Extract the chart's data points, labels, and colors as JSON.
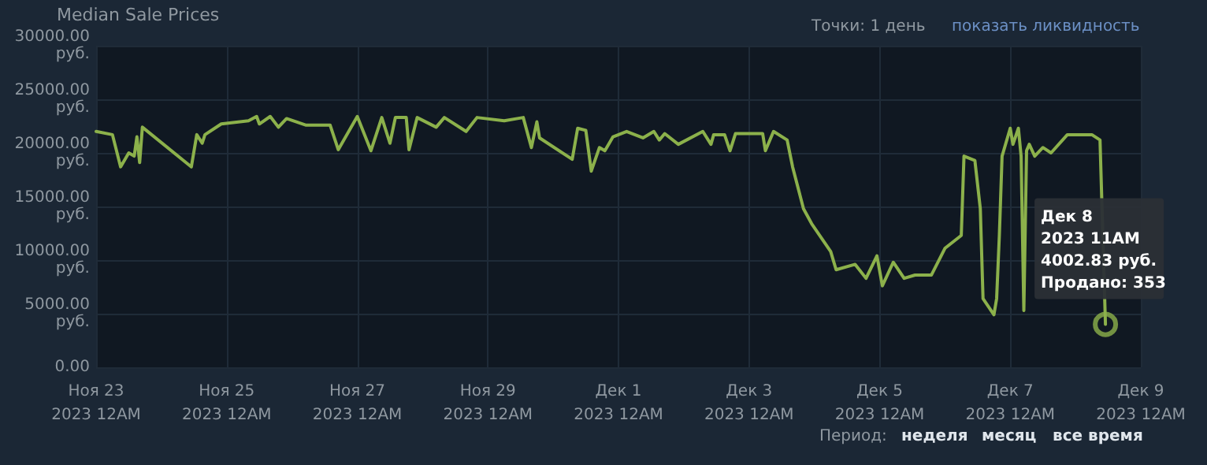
{
  "chart_data": {
    "type": "line",
    "title": "Median Sale Prices",
    "x": [
      "2023-11-23T00:00",
      "2023-11-23T06:00",
      "2023-11-23T09:00",
      "2023-11-23T12:00",
      "2023-11-23T14:00",
      "2023-11-23T15:00",
      "2023-11-23T16:00",
      "2023-11-23T17:00",
      "2023-11-24T11:00",
      "2023-11-24T13:00",
      "2023-11-24T15:00",
      "2023-11-24T16:00",
      "2023-11-24T22:00",
      "2023-11-25T08:00",
      "2023-11-25T11:00",
      "2023-11-25T12:00",
      "2023-11-25T16:00",
      "2023-11-25T19:00",
      "2023-11-25T22:00",
      "2023-11-26T05:00",
      "2023-11-26T14:00",
      "2023-11-26T17:00",
      "2023-11-27T00:00",
      "2023-11-27T05:00",
      "2023-11-27T09:00",
      "2023-11-27T12:00",
      "2023-11-27T14:00",
      "2023-11-27T18:00",
      "2023-11-27T19:00",
      "2023-11-27T22:00",
      "2023-11-28T05:00",
      "2023-11-28T08:00",
      "2023-11-28T16:00",
      "2023-11-28T20:00",
      "2023-11-29T06:00",
      "2023-11-29T13:00",
      "2023-11-29T16:00",
      "2023-11-29T18:00",
      "2023-11-29T19:00",
      "2023-11-30T07:00",
      "2023-11-30T09:00",
      "2023-11-30T12:00",
      "2023-11-30T14:00",
      "2023-11-30T17:00",
      "2023-11-30T19:00",
      "2023-11-30T22:00",
      "2023-12-01T03:00",
      "2023-12-01T09:00",
      "2023-12-01T13:00",
      "2023-12-01T15:00",
      "2023-12-01T17:00",
      "2023-12-01T22:00",
      "2023-12-02T07:00",
      "2023-12-02T10:00",
      "2023-12-02T11:00",
      "2023-12-02T15:00",
      "2023-12-02T17:00",
      "2023-12-02T19:00",
      "2023-12-03T05:00",
      "2023-12-03T06:00",
      "2023-12-03T09:00",
      "2023-12-03T14:00",
      "2023-12-03T16:00",
      "2023-12-03T20:00",
      "2023-12-03T23:00",
      "2023-12-04T06:00",
      "2023-12-04T08:00",
      "2023-12-04T15:00",
      "2023-12-04T19:00",
      "2023-12-04T23:00",
      "2023-12-05T01:00",
      "2023-12-05T05:00",
      "2023-12-05T09:00",
      "2023-12-05T13:00",
      "2023-12-05T19:00",
      "2023-12-06T00:00",
      "2023-12-06T06:00",
      "2023-12-06T07:00",
      "2023-12-06T11:00",
      "2023-12-06T13:00",
      "2023-12-06T14:00",
      "2023-12-06T18:00",
      "2023-12-06T19:00",
      "2023-12-06T20:00",
      "2023-12-06T21:00",
      "2023-12-07T00:00",
      "2023-12-07T01:00",
      "2023-12-07T03:00",
      "2023-12-07T04:00",
      "2023-12-07T05:00",
      "2023-12-07T06:00",
      "2023-12-07T07:00",
      "2023-12-07T09:00",
      "2023-12-07T12:00",
      "2023-12-07T15:00",
      "2023-12-07T21:00",
      "2023-12-08T06:00",
      "2023-12-08T09:00",
      "2023-12-08T11:00"
    ],
    "series": [
      {
        "color": "#8cb14b",
        "values": [
          22000,
          21700,
          18700,
          20000,
          19700,
          21500,
          19100,
          22400,
          18700,
          21700,
          20900,
          21700,
          22700,
          23000,
          23400,
          22700,
          23400,
          22400,
          23200,
          22600,
          22600,
          20300,
          23400,
          20200,
          23300,
          20900,
          23300,
          23300,
          20300,
          23300,
          22400,
          23300,
          22000,
          23300,
          23000,
          23300,
          20500,
          22900,
          21400,
          19400,
          22300,
          22100,
          18300,
          20500,
          20200,
          21500,
          22000,
          21400,
          22000,
          21200,
          21800,
          20800,
          22000,
          20800,
          21700,
          21700,
          20200,
          21800,
          21800,
          20200,
          22000,
          21200,
          18700,
          14800,
          13400,
          10800,
          9100,
          9600,
          8300,
          10400,
          7600,
          9800,
          8300,
          8600,
          8600,
          11100,
          12300,
          19700,
          19300,
          14800,
          6400,
          4900,
          6400,
          12300,
          19700,
          22300,
          20800,
          22300,
          19700,
          5300,
          20200,
          20800,
          19700,
          20500,
          20000,
          21700,
          21700,
          21200,
          4002.83
        ]
      }
    ],
    "xlim": [
      "2023-11-23T00:00",
      "2023-12-09T00:00"
    ],
    "xticks": [
      {
        "value": "2023-11-23T00:00",
        "label": "Ноя 23\n2023 12AM"
      },
      {
        "value": "2023-11-25T00:00",
        "label": "Ноя 25\n2023 12AM"
      },
      {
        "value": "2023-11-27T00:00",
        "label": "Ноя 27\n2023 12AM"
      },
      {
        "value": "2023-11-29T00:00",
        "label": "Ноя 29\n2023 12AM"
      },
      {
        "value": "2023-12-01T00:00",
        "label": "Дек 1\n2023 12AM"
      },
      {
        "value": "2023-12-03T00:00",
        "label": "Дек 3\n2023 12AM"
      },
      {
        "value": "2023-12-05T00:00",
        "label": "Дек 5\n2023 12AM"
      },
      {
        "value": "2023-12-07T00:00",
        "label": "Дек 7\n2023 12AM"
      },
      {
        "value": "2023-12-09T00:00",
        "label": "Дек 9\n2023 12AM"
      }
    ],
    "ylim": [
      0,
      30000
    ],
    "yticks": [
      {
        "value": 0,
        "label": "0.00"
      },
      {
        "value": 5000,
        "label": "5000.00\nруб."
      },
      {
        "value": 10000,
        "label": "10000.00\nруб."
      },
      {
        "value": 15000,
        "label": "15000.00\nруб."
      },
      {
        "value": 20000,
        "label": "20000.00\nруб."
      },
      {
        "value": 25000,
        "label": "25000.00\nруб."
      },
      {
        "value": 30000,
        "label": "30000.00\nруб."
      }
    ],
    "grid": true,
    "marker": "none",
    "line_style": "solid",
    "annotations": [
      {
        "text": "Дек 8\n2023 11AM\n4002.83 руб.\nПродано: 353",
        "x": "2023-12-08T11:00",
        "y": 4002.83
      },
      "Точки: 1 день",
      "показать ликвидность",
      "Период:",
      "неделя",
      "месяц",
      "все время"
    ]
  }
}
